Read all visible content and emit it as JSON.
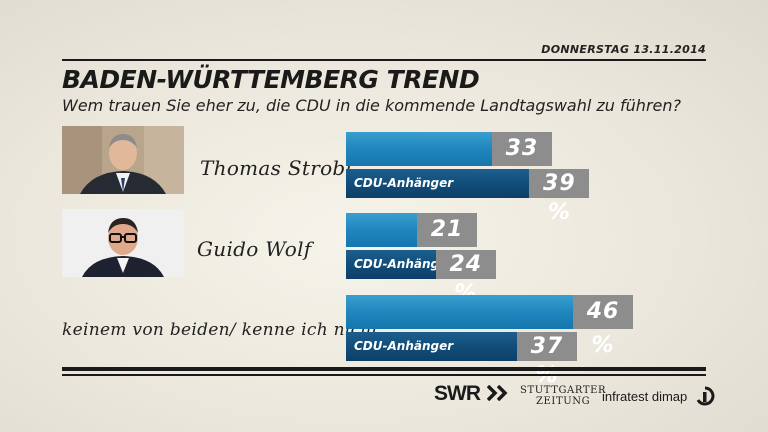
{
  "header": {
    "date": "DONNERSTAG  13.11.2014",
    "title": "BADEN-WÜRTTEMBERG TREND",
    "subtitle": "Wem trauen Sie eher zu, die CDU in die kommende Landtagswahl zu führen?"
  },
  "footer": {
    "swr": "SWR",
    "stuttgarter_line1": "STUTTGARTER",
    "stuttgarter_line2": "ZEITUNG",
    "dimap": "infratest dimap"
  },
  "colors": {
    "main_bar": "#1f86bd",
    "sub_bar": "#124d79",
    "label_box": "#8d8d8d",
    "rule": "#1a1a1a"
  },
  "chart_data": {
    "type": "bar",
    "orientation": "horizontal",
    "categories": [
      "Thomas Strobl",
      "Guido Wolf",
      "keinem von beiden/ kenne ich nicht"
    ],
    "series": [
      {
        "name": "",
        "values": [
          33,
          21,
          46
        ],
        "labels": [
          "33 %",
          "21 %",
          "46 %"
        ]
      },
      {
        "name": "CDU-Anhänger",
        "values": [
          39,
          24,
          37
        ],
        "labels": [
          "39 %",
          "24 %",
          "37 %"
        ]
      }
    ],
    "unit": "%",
    "grid": false
  }
}
